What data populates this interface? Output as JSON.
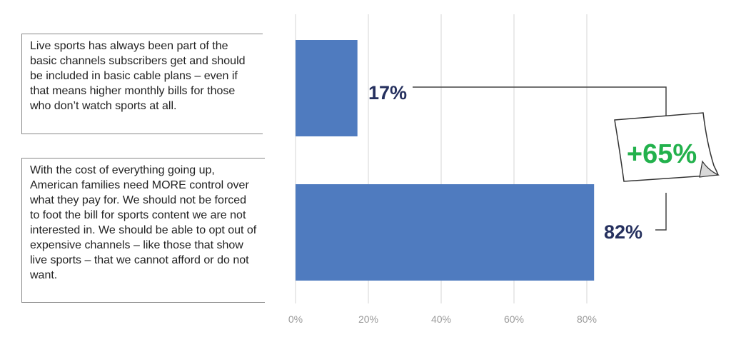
{
  "chart_data": {
    "type": "bar",
    "orientation": "horizontal",
    "categories": [
      "Live sports has always been part of the basic channels subscribers get and should be included in basic cable plans – even if that means higher monthly bills for those who don’t watch sports at all.",
      "With the cost of everything going up, American families need MORE control over what they pay for. We should not be forced to foot the bill for sports content we are not interested in. We should be able to opt out of expensive channels – like those that show live sports – that we cannot afford or do not want."
    ],
    "values": [
      17,
      82
    ],
    "value_labels": [
      "17%",
      "82%"
    ],
    "xlim": [
      0,
      100
    ],
    "xticks": [
      0,
      20,
      40,
      60,
      80
    ],
    "xtick_labels": [
      "0%",
      "20%",
      "40%",
      "60%",
      "80%"
    ],
    "grid": true,
    "bar_color": "#4f7bbf",
    "annotation": {
      "text": "+65%",
      "color": "#22b14c"
    }
  }
}
